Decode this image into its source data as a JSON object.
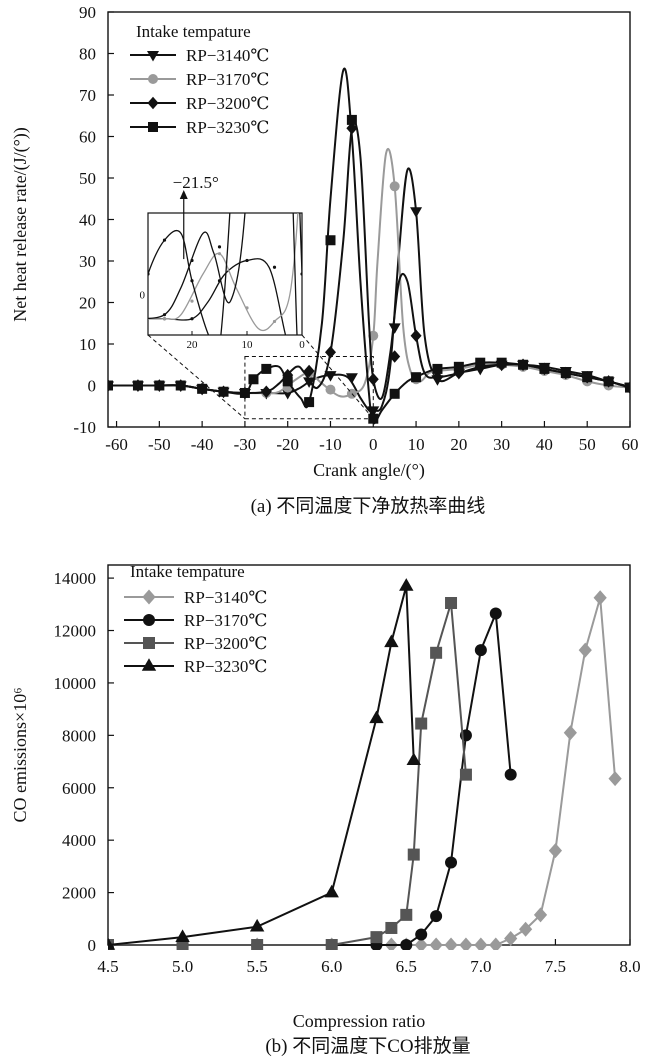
{
  "chart_data": [
    {
      "type": "line",
      "caption": "(a) 不同温度下净放热率曲线",
      "xlabel": "Crank angle/(°)",
      "ylabel": "Net heat release rate/(J/(°))",
      "xlim": [
        -62,
        60
      ],
      "ylim": [
        -10,
        90
      ],
      "xticks": [
        -60,
        -50,
        -40,
        -30,
        -20,
        -10,
        0,
        10,
        20,
        30,
        40,
        50,
        60
      ],
      "yticks": [
        -10,
        0,
        10,
        20,
        30,
        40,
        50,
        60,
        70,
        80,
        90
      ],
      "legend_title": "Intake tempature",
      "legend_position": "top-left",
      "series": [
        {
          "name": "RP−3140℃",
          "color": "#111111",
          "marker": "triangle-down",
          "x": [
            -62,
            -55,
            -50,
            -45,
            -40,
            -35,
            -30,
            -25,
            -20,
            -17,
            -14,
            -10,
            -6,
            -3,
            -1,
            0,
            2,
            4,
            6,
            8,
            10,
            12,
            15,
            20,
            25,
            30,
            35,
            40,
            45,
            50,
            55,
            60
          ],
          "y": [
            0,
            0,
            0,
            0,
            -0.8,
            -1.5,
            -1.8,
            -1.8,
            -1.8,
            -0.5,
            1.5,
            2.5,
            2,
            -3,
            -6,
            -6,
            -5,
            5,
            32,
            52,
            42,
            12,
            1.5,
            3,
            4,
            5,
            5,
            4.5,
            3.5,
            2.5,
            1,
            -0.3
          ],
          "mx": [
            -62,
            -55,
            -50,
            -45,
            -40,
            -35,
            -30,
            -25,
            -20,
            -15,
            -10,
            -5,
            0,
            5,
            10,
            15,
            20,
            25,
            30,
            35,
            40,
            45,
            50,
            55,
            60
          ],
          "my": [
            0,
            0,
            0,
            0,
            -0.8,
            -1.5,
            -1.8,
            -1.8,
            -1.8,
            1,
            2.5,
            2,
            -6,
            14,
            42,
            1.5,
            3,
            4,
            5,
            5,
            4.5,
            3.5,
            2.5,
            1,
            -0.3
          ]
        },
        {
          "name": "RP−3170℃",
          "color": "#9a9a9a",
          "marker": "circle",
          "x": [
            -62,
            -55,
            -50,
            -45,
            -40,
            -35,
            -30,
            -25,
            -22,
            -18,
            -15,
            -12,
            -8,
            -5,
            -2,
            0,
            1,
            3,
            5,
            7,
            9,
            11,
            13,
            15,
            20,
            25,
            30,
            35,
            40,
            45,
            50,
            55,
            60
          ],
          "y": [
            0,
            0,
            0,
            0,
            -0.8,
            -1.5,
            -1.8,
            -1.8,
            -1.5,
            1.5,
            3,
            0.5,
            -2.5,
            -2,
            0.5,
            12,
            30,
            56,
            48,
            14,
            2.5,
            1,
            3,
            3.5,
            4,
            5,
            5,
            4.5,
            3.5,
            2.5,
            1,
            0,
            -0.5
          ],
          "mx": [
            -62,
            -55,
            -50,
            -45,
            -40,
            -35,
            -30,
            -25,
            -20,
            -15,
            -10,
            -5,
            0,
            5,
            10,
            15,
            20,
            25,
            30,
            35,
            40,
            45,
            50,
            55,
            60
          ],
          "my": [
            0,
            0,
            0,
            0,
            -0.8,
            -1.5,
            -1.8,
            -1.8,
            -0.5,
            3,
            -1,
            -2,
            12,
            48,
            1.5,
            3.5,
            4,
            5,
            5,
            4.5,
            3.5,
            2.5,
            1,
            0,
            -0.5
          ]
        },
        {
          "name": "RP−3200℃",
          "color": "#111111",
          "marker": "diamond",
          "x": [
            -62,
            -55,
            -50,
            -45,
            -40,
            -35,
            -30,
            -25,
            -22,
            -18,
            -16,
            -13,
            -10,
            -7,
            -5,
            -3,
            -1,
            0,
            2,
            4,
            6,
            8,
            10,
            12,
            15,
            20,
            25,
            30,
            35,
            40,
            45,
            50,
            55,
            60
          ],
          "y": [
            0,
            0,
            0,
            0,
            -0.8,
            -1.5,
            -1.8,
            -1.5,
            0.5,
            4.5,
            3,
            -0.5,
            8,
            35,
            62,
            55,
            15,
            1.5,
            -3,
            8,
            25,
            25,
            12,
            3,
            2,
            3,
            4.5,
            5,
            5,
            4,
            3,
            2,
            1,
            -0.5
          ],
          "mx": [
            -62,
            -55,
            -50,
            -45,
            -40,
            -35,
            -30,
            -25,
            -20,
            -15,
            -10,
            -5,
            0,
            5,
            10,
            15,
            20,
            25,
            30,
            35,
            40,
            45,
            50,
            55,
            60
          ],
          "my": [
            0,
            0,
            0,
            0,
            -0.8,
            -1.5,
            -1.8,
            -1.5,
            2.5,
            3.5,
            8,
            62,
            1.5,
            7,
            12,
            2,
            3,
            4.5,
            5,
            5,
            4,
            3,
            2,
            1,
            -0.5
          ]
        },
        {
          "name": "RP−3230℃",
          "color": "#111111",
          "marker": "square",
          "x": [
            -62,
            -55,
            -50,
            -45,
            -40,
            -35,
            -30,
            -28,
            -25,
            -22,
            -20,
            -17,
            -15,
            -12,
            -10,
            -7,
            -5,
            -3,
            -1,
            0,
            2,
            5,
            8,
            10,
            12,
            15,
            20,
            25,
            30,
            35,
            40,
            45,
            50,
            55,
            60
          ],
          "y": [
            0,
            0,
            0,
            0,
            -0.8,
            -1.5,
            -1.8,
            1.5,
            4,
            4.5,
            1,
            -3,
            -4,
            15,
            45,
            76,
            60,
            25,
            -2,
            -9,
            -6,
            -2,
            1,
            2,
            3,
            4,
            4.5,
            5.5,
            5.5,
            5,
            4,
            3,
            2,
            1,
            -0.5
          ],
          "mx": [
            -62,
            -55,
            -50,
            -45,
            -40,
            -35,
            -30,
            -28,
            -25,
            -20,
            -15,
            -10,
            -5,
            0,
            5,
            10,
            15,
            20,
            25,
            30,
            35,
            40,
            45,
            50,
            55,
            60
          ],
          "my": [
            0,
            0,
            0,
            0,
            -0.8,
            -1.5,
            -1.8,
            1.5,
            4,
            1,
            -4,
            35,
            64,
            -8,
            -2,
            2,
            4,
            4.5,
            5.5,
            5.5,
            5,
            4,
            3,
            2,
            1,
            -0.5
          ]
        }
      ],
      "annotation": "−21.5°",
      "inset": {
        "xticks": [
          20,
          10,
          0
        ],
        "ytick": "0",
        "xlim": [
          28,
          0
        ],
        "ylim": [
          -3,
          6
        ],
        "zoom_box_x": [
          -30,
          0
        ],
        "zoom_box_y": [
          -8,
          7
        ]
      }
    },
    {
      "type": "line",
      "caption": "(b) 不同温度下CO排放量",
      "xlabel": "Compression ratio",
      "ylabel": "CO emissions×10⁶",
      "xlim": [
        4.5,
        8.0
      ],
      "ylim": [
        0,
        14500
      ],
      "xticks": [
        "4.5",
        "5.0",
        "5.5",
        "6.0",
        "6.5",
        "7.0",
        "7.5",
        "8.0"
      ],
      "yticks": [
        "0",
        "2000",
        "4000",
        "6000",
        "8000",
        "10000",
        "12000",
        "14000"
      ],
      "legend_title": "Intake tempature",
      "legend_position": "top-left",
      "series": [
        {
          "name": "RP−3140℃",
          "color": "#9a9a9a",
          "marker": "diamond",
          "x": [
            4.5,
            5.0,
            5.5,
            6.0,
            6.3,
            6.4,
            6.5,
            6.6,
            6.7,
            6.8,
            6.9,
            7.0,
            7.1,
            7.2,
            7.3,
            7.4,
            7.5,
            7.6,
            7.7,
            7.8,
            7.9
          ],
          "y": [
            0,
            0,
            0,
            0,
            0,
            0,
            0,
            0,
            0,
            0,
            0,
            0,
            0,
            250,
            600,
            1150,
            3600,
            8100,
            11250,
            13250,
            6350
          ]
        },
        {
          "name": "RP−3170℃",
          "color": "#111111",
          "marker": "circle",
          "x": [
            4.5,
            5.0,
            5.5,
            6.0,
            6.3,
            6.5,
            6.6,
            6.7,
            6.8,
            6.9,
            7.0,
            7.1,
            7.2
          ],
          "y": [
            0,
            0,
            0,
            0,
            0,
            0,
            400,
            1100,
            3150,
            8000,
            11250,
            12650,
            6500
          ]
        },
        {
          "name": "RP−3200℃",
          "color": "#555555",
          "marker": "square",
          "x": [
            4.5,
            5.0,
            5.5,
            6.0,
            6.3,
            6.4,
            6.5,
            6.55,
            6.6,
            6.7,
            6.8,
            6.9
          ],
          "y": [
            0,
            0,
            0,
            0,
            300,
            650,
            1150,
            3450,
            8450,
            11150,
            13050,
            6500
          ]
        },
        {
          "name": "RP−3230℃",
          "color": "#111111",
          "marker": "triangle",
          "x": [
            4.5,
            5.0,
            5.5,
            6.0,
            6.3,
            6.4,
            6.5,
            6.55
          ],
          "y": [
            0,
            300,
            700,
            2000,
            8650,
            11550,
            13700,
            7050
          ]
        }
      ]
    }
  ]
}
